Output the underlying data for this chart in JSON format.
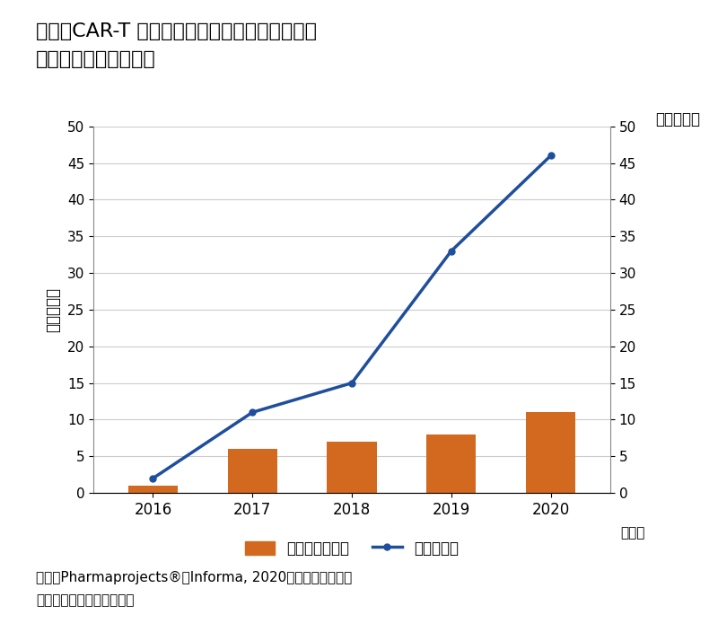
{
  "title_line1": "図５　CAR-T 細胞療法の新規品目数推移と新規",
  "title_line2": "　　　参入企業数推移",
  "years": [
    2016,
    2017,
    2018,
    2019,
    2020
  ],
  "bar_values": [
    1,
    6,
    7,
    8,
    11
  ],
  "line_values": [
    2,
    11,
    15,
    33,
    46
  ],
  "bar_color": "#D2691E",
  "line_color": "#1F4E9B",
  "left_ylabel": "（品目数）",
  "right_ylabel": "（企業数）",
  "xlabel": "（年）",
  "ylim": [
    0,
    50
  ],
  "yticks": [
    0,
    5,
    10,
    15,
    20,
    25,
    30,
    35,
    40,
    45,
    50
  ],
  "legend_bar": "新規参入企業数",
  "legend_line": "新規品目数",
  "source_line1": "出所：Pharmaprojects®｜Informa, 2020をもとに医薬産業",
  "source_line2": "　　　政策研究所にて作成",
  "bar_width": 0.5,
  "background_color": "#ffffff",
  "grid_color": "#cccccc"
}
